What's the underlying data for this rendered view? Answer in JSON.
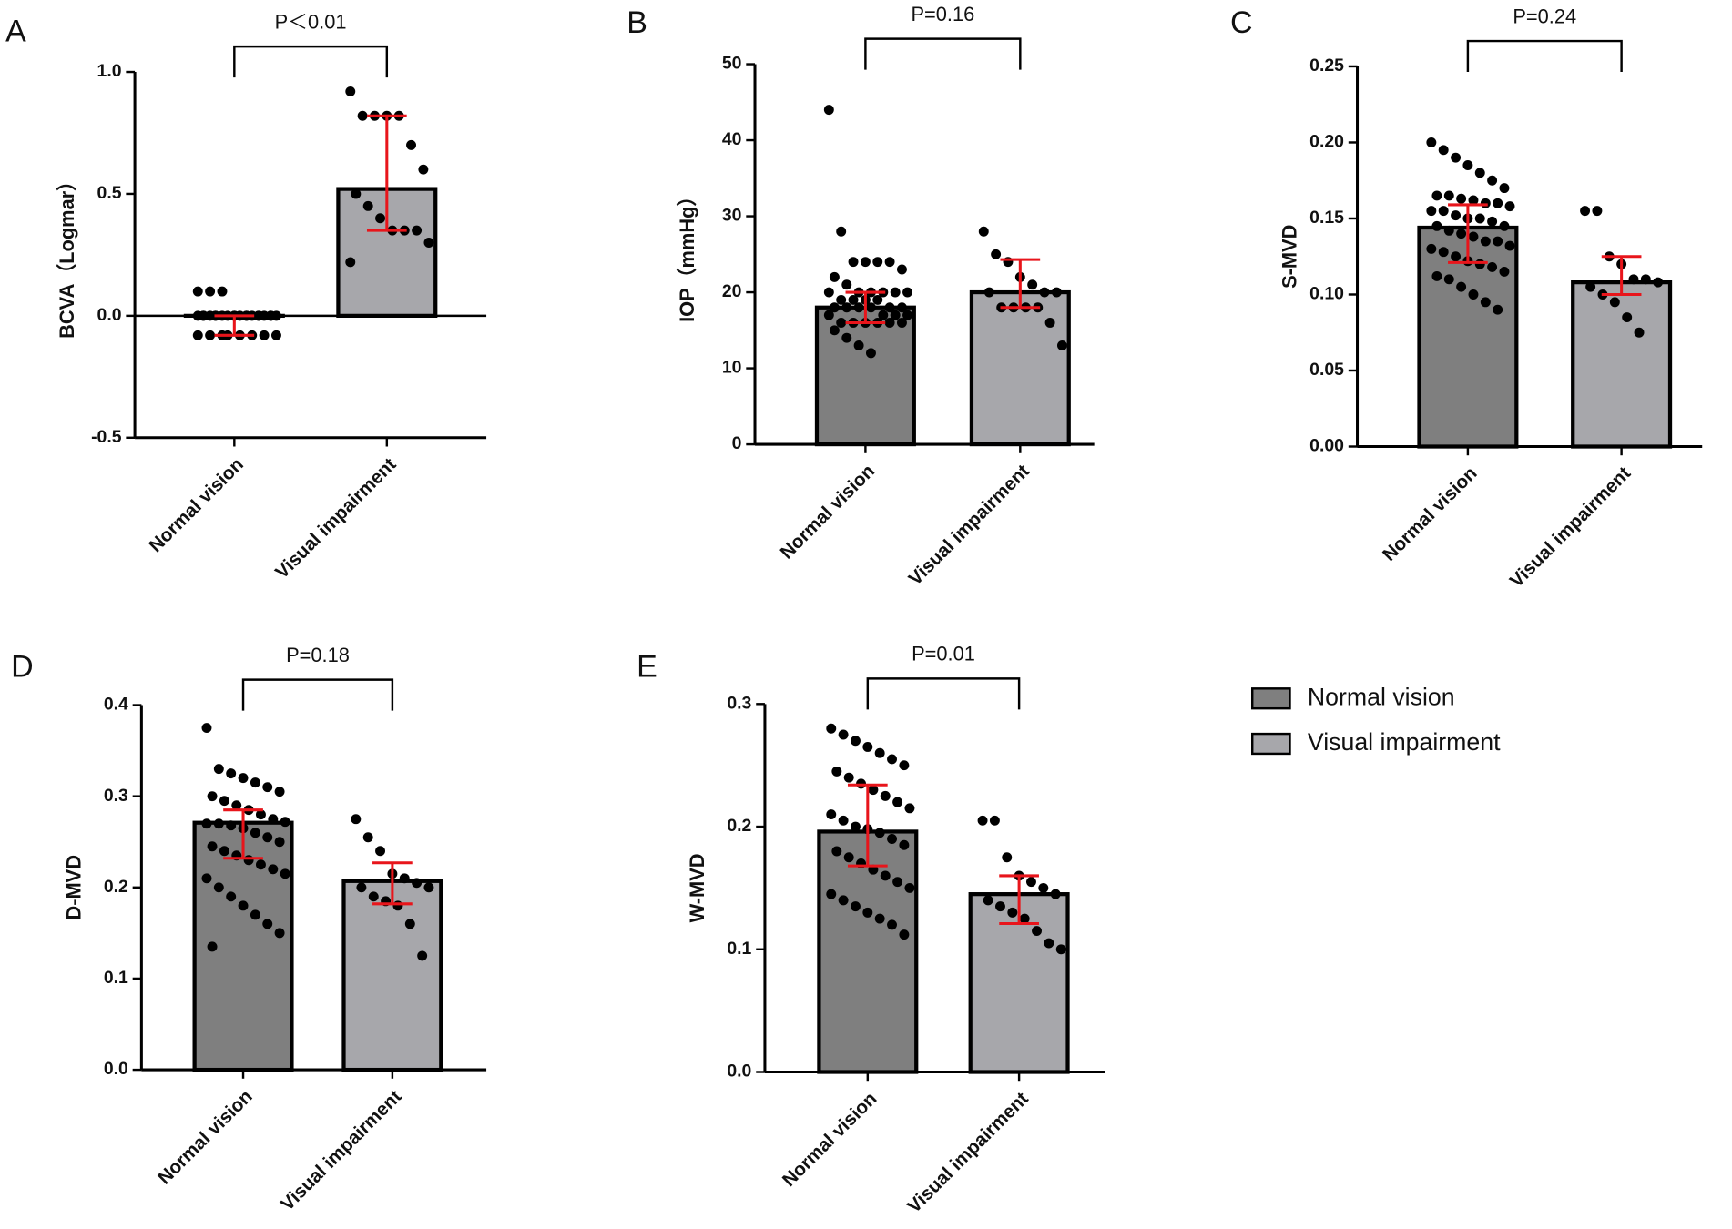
{
  "legend": [
    {
      "name": "Normal vision",
      "color": "#7f7f7f"
    },
    {
      "name": "Visual impairment",
      "color": "#a7a7ab"
    }
  ],
  "chart_data": [
    {
      "type": "bar",
      "panel": "A",
      "annotation": "P＜0.01",
      "y_label": "BCVA（Logmar）",
      "categories": [
        "Normal vision",
        "Visual impairment"
      ],
      "values": [
        0,
        0.52
      ],
      "errors": [
        [
          -0.08,
          0
        ],
        [
          0.35,
          0.82
        ]
      ],
      "points": [
        [
          0.1,
          0.1,
          0.1,
          0,
          0,
          0,
          0,
          0,
          0,
          0,
          0,
          0,
          0,
          0,
          0,
          0,
          0,
          0,
          0,
          0,
          0,
          0,
          0,
          -0.08,
          -0.08,
          -0.08,
          -0.08,
          -0.08,
          -0.08,
          -0.08,
          -0.08
        ],
        [
          0.92,
          0.82,
          0.82,
          0.82,
          0.82,
          0.7,
          0.6,
          0.5,
          0.45,
          0.4,
          0.35,
          0.35,
          0.35,
          0.3,
          0.22
        ]
      ],
      "ylim": [
        -0.5,
        1.0
      ],
      "yticks": [
        -0.5,
        {
          "value": 0,
          "label": "0.0"
        },
        0.5,
        {
          "value": 1,
          "label": "1.0"
        }
      ]
    },
    {
      "type": "bar",
      "panel": "B",
      "annotation": "P=0.16",
      "y_label": "IOP（mmHg）",
      "categories": [
        "Normal vision",
        "Visual impairment"
      ],
      "values": [
        18,
        20
      ],
      "errors": [
        [
          16,
          20
        ],
        [
          18,
          24.3
        ]
      ],
      "points": [
        [
          44,
          28,
          24,
          24,
          24,
          24,
          23,
          22,
          21,
          20,
          20,
          20,
          20,
          20,
          20,
          19,
          19,
          19,
          19,
          18,
          18,
          18,
          18,
          18,
          18,
          17,
          17,
          17,
          17,
          16,
          16,
          16,
          16,
          16,
          16,
          15,
          14,
          13,
          12
        ],
        [
          28,
          25,
          24,
          22,
          21,
          20,
          20,
          20,
          18,
          18,
          18,
          18,
          16,
          13
        ]
      ],
      "ylim": [
        0,
        50
      ],
      "yticks": [
        0,
        10,
        20,
        30,
        40,
        50
      ]
    },
    {
      "type": "bar",
      "panel": "C",
      "annotation": "P=0.24",
      "y_label": "S-MVD",
      "categories": [
        "Normal vision",
        "Visual impairment"
      ],
      "values": [
        0.144,
        0.108
      ],
      "errors": [
        [
          0.121,
          0.159
        ],
        [
          0.1,
          0.125
        ]
      ],
      "points": [
        [
          0.2,
          0.195,
          0.19,
          0.185,
          0.18,
          0.175,
          0.17,
          0.165,
          0.165,
          0.163,
          0.162,
          0.16,
          0.16,
          0.158,
          0.155,
          0.155,
          0.152,
          0.15,
          0.15,
          0.148,
          0.145,
          0.145,
          0.142,
          0.14,
          0.138,
          0.135,
          0.135,
          0.132,
          0.13,
          0.128,
          0.125,
          0.122,
          0.12,
          0.118,
          0.115,
          0.112,
          0.11,
          0.105,
          0.1,
          0.095,
          0.09
        ],
        [
          0.155,
          0.155,
          0.125,
          0.12,
          0.11,
          0.11,
          0.108,
          0.105,
          0.1,
          0.095,
          0.085,
          0.075
        ]
      ],
      "ylim": [
        0,
        0.25
      ],
      "yticks": [
        {
          "value": 0,
          "label": "0.00"
        },
        0.05,
        {
          "value": 0.1,
          "label": "0.10"
        },
        0.15,
        {
          "value": 0.2,
          "label": "0.20"
        },
        0.25
      ]
    },
    {
      "type": "bar",
      "panel": "D",
      "annotation": "P=0.18",
      "y_label": "D-MVD",
      "categories": [
        "Normal vision",
        "Visual impairment"
      ],
      "values": [
        0.271,
        0.207
      ],
      "errors": [
        [
          0.232,
          0.285
        ],
        [
          0.182,
          0.227
        ]
      ],
      "points": [
        [
          0.375,
          0.33,
          0.325,
          0.32,
          0.315,
          0.31,
          0.305,
          0.3,
          0.295,
          0.29,
          0.285,
          0.28,
          0.275,
          0.272,
          0.27,
          0.27,
          0.268,
          0.265,
          0.26,
          0.255,
          0.25,
          0.245,
          0.24,
          0.235,
          0.23,
          0.225,
          0.22,
          0.215,
          0.21,
          0.2,
          0.19,
          0.18,
          0.17,
          0.16,
          0.15,
          0.135
        ],
        [
          0.275,
          0.255,
          0.24,
          0.215,
          0.21,
          0.205,
          0.2,
          0.2,
          0.19,
          0.185,
          0.18,
          0.16,
          0.125
        ]
      ],
      "ylim": [
        0,
        0.4
      ],
      "yticks": [
        {
          "value": 0,
          "label": "0.0"
        },
        0.1,
        0.2,
        0.3,
        0.4
      ]
    },
    {
      "type": "bar",
      "panel": "E",
      "annotation": "P=0.01",
      "y_label": "W-MVD",
      "categories": [
        "Normal vision",
        "Visual impairment"
      ],
      "values": [
        0.196,
        0.145
      ],
      "errors": [
        [
          0.168,
          0.234
        ],
        [
          0.121,
          0.16
        ]
      ],
      "points": [
        [
          0.28,
          0.275,
          0.27,
          0.265,
          0.26,
          0.255,
          0.25,
          0.245,
          0.24,
          0.235,
          0.23,
          0.225,
          0.22,
          0.215,
          0.21,
          0.205,
          0.2,
          0.198,
          0.195,
          0.19,
          0.185,
          0.18,
          0.175,
          0.17,
          0.165,
          0.16,
          0.155,
          0.15,
          0.145,
          0.14,
          0.135,
          0.13,
          0.125,
          0.12,
          0.112
        ],
        [
          0.205,
          0.205,
          0.175,
          0.16,
          0.155,
          0.15,
          0.145,
          0.14,
          0.135,
          0.13,
          0.125,
          0.115,
          0.105,
          0.1
        ]
      ],
      "ylim": [
        0,
        0.3
      ],
      "yticks": [
        {
          "value": 0,
          "label": "0.0"
        },
        0.1,
        0.2,
        0.3
      ]
    }
  ]
}
